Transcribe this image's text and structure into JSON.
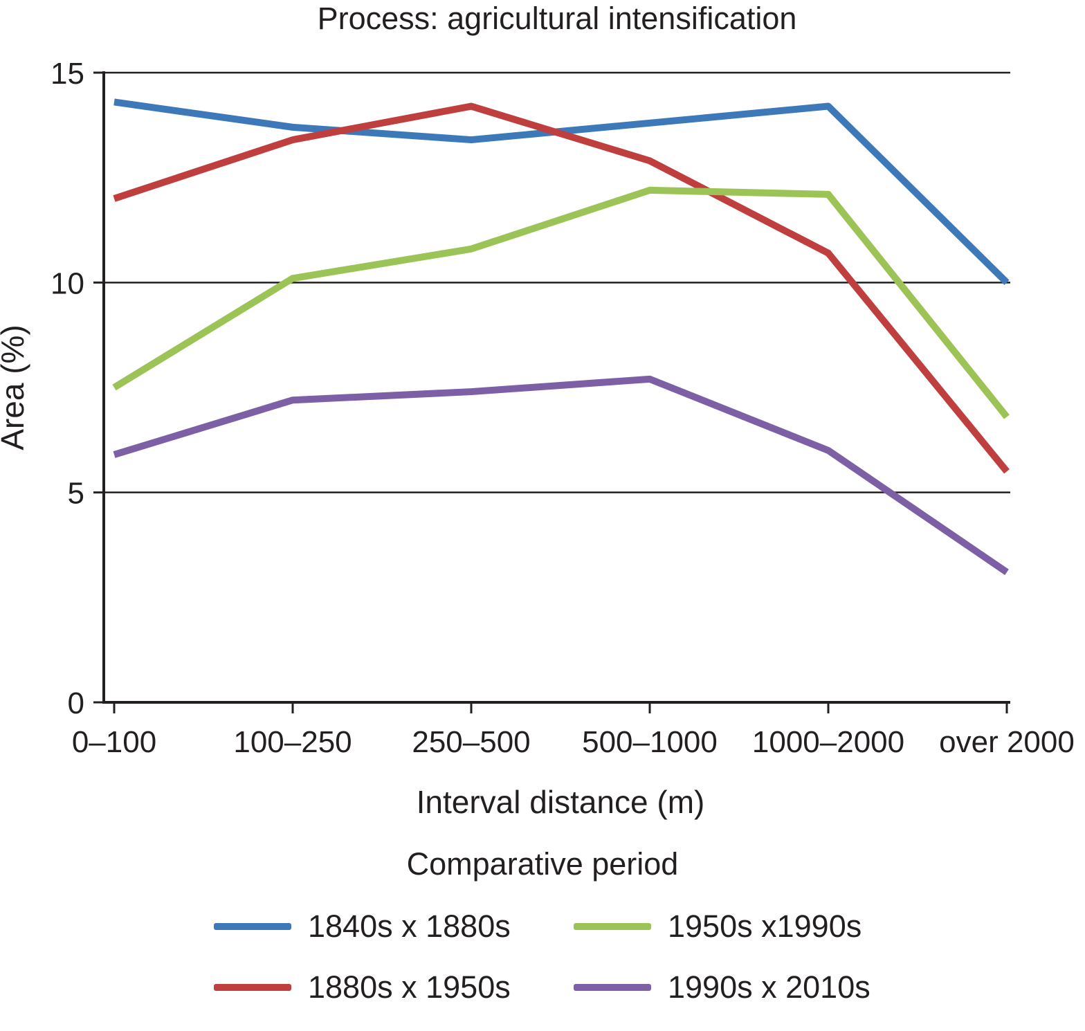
{
  "chart_data": {
    "type": "line",
    "title": "Process: agricultural intensification",
    "xlabel": "Interval distance (m)",
    "ylabel": "Area (%)",
    "ylim": [
      0,
      15
    ],
    "yticks": [
      0,
      5,
      10,
      15
    ],
    "grid": "horizontal",
    "categories": [
      "0–100",
      "100–250",
      "250–500",
      "500–1000",
      "1000–2000",
      "over 2000"
    ],
    "legend_title": "Comparative period",
    "legend_position": "bottom",
    "series": [
      {
        "name": "1840s x 1880s",
        "color": "#3d79b8",
        "values": [
          14.3,
          13.7,
          13.4,
          13.8,
          14.2,
          10.0
        ]
      },
      {
        "name": "1880s x 1950s",
        "color": "#be3f3e",
        "values": [
          12.0,
          13.4,
          14.2,
          12.9,
          10.7,
          5.5
        ]
      },
      {
        "name": "1950s x1990s",
        "color": "#9cc355",
        "values": [
          7.5,
          10.1,
          10.8,
          12.2,
          12.1,
          6.8
        ]
      },
      {
        "name": "1990s x 2010s",
        "color": "#7c5fa5",
        "values": [
          5.9,
          7.2,
          7.4,
          7.7,
          6.0,
          3.1
        ]
      }
    ],
    "legend_order": [
      0,
      2,
      1,
      3
    ]
  }
}
